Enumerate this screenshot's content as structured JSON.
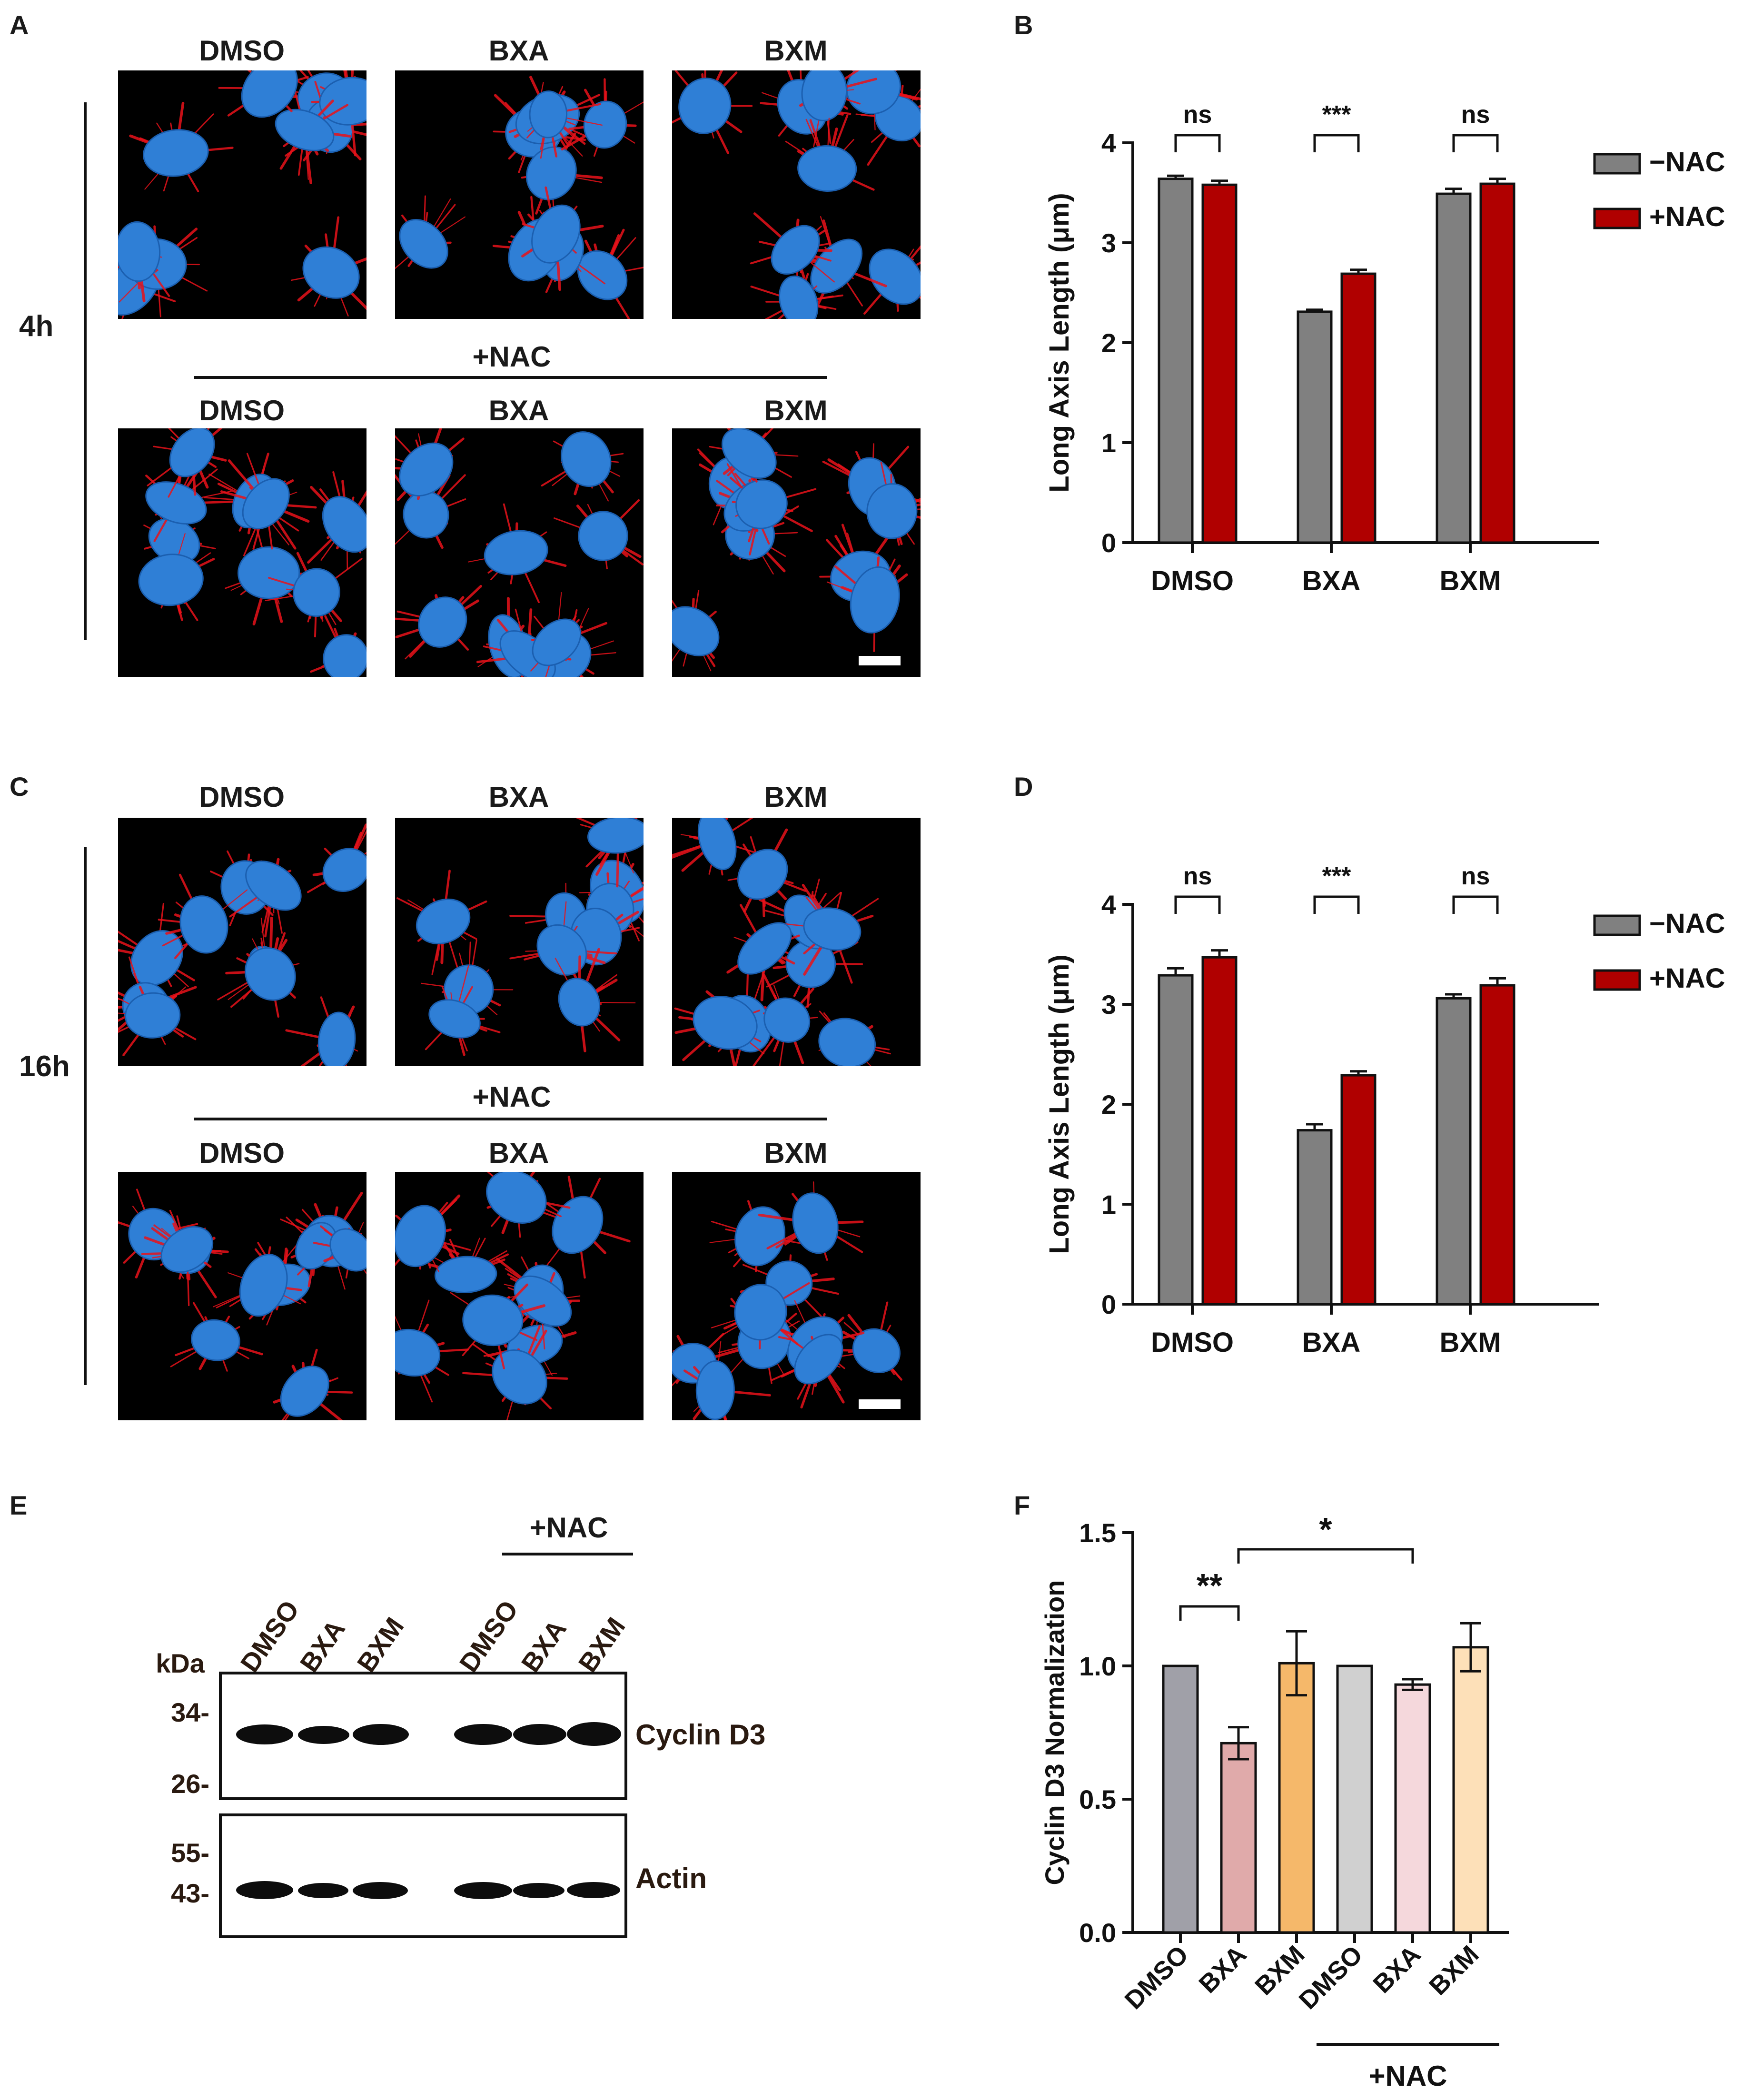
{
  "panels": {
    "A": {
      "letter": "A",
      "time_label": "4h",
      "top_labels": [
        "DMSO",
        "BXA",
        "BXM"
      ],
      "nac_label": "+NAC",
      "bottom_labels": [
        "DMSO",
        "BXA",
        "BXM"
      ]
    },
    "B": {
      "letter": "B",
      "chart_data": {
        "type": "bar",
        "categories": [
          "DMSO",
          "BXA",
          "BXM"
        ],
        "series": [
          {
            "name": "−NAC",
            "values": [
              3.64,
              2.31,
              3.49
            ],
            "errors": [
              0.03,
              0.02,
              0.05
            ],
            "color": "#808080"
          },
          {
            "name": "+NAC",
            "values": [
              3.58,
              2.69,
              3.59
            ],
            "errors": [
              0.04,
              0.04,
              0.05
            ],
            "color": "#b00000"
          }
        ],
        "ylabel": "Long Axis Length (μm)",
        "ylim": [
          0,
          4
        ],
        "yticks": [
          "0",
          "1",
          "2",
          "3",
          "4"
        ],
        "significance": [
          "ns",
          "***",
          "ns"
        ],
        "legend": "right"
      }
    },
    "C": {
      "letter": "C",
      "time_label": "16h",
      "top_labels": [
        "DMSO",
        "BXA",
        "BXM"
      ],
      "nac_label": "+NAC",
      "bottom_labels": [
        "DMSO",
        "BXA",
        "BXM"
      ]
    },
    "D": {
      "letter": "D",
      "chart_data": {
        "type": "bar",
        "categories": [
          "DMSO",
          "BXA",
          "BXM"
        ],
        "series": [
          {
            "name": "−NAC",
            "values": [
              3.29,
              1.74,
              3.06
            ],
            "errors": [
              0.07,
              0.06,
              0.04
            ],
            "color": "#808080"
          },
          {
            "name": "+NAC",
            "values": [
              3.47,
              2.29,
              3.19
            ],
            "errors": [
              0.07,
              0.04,
              0.07
            ],
            "color": "#b00000"
          }
        ],
        "ylabel": "Long Axis Length (μm)",
        "ylim": [
          0,
          4
        ],
        "yticks": [
          "0",
          "1",
          "2",
          "3",
          "4"
        ],
        "significance": [
          "ns",
          "***",
          "ns"
        ],
        "legend": "right"
      }
    },
    "E": {
      "letter": "E",
      "nac_label": "+NAC",
      "kda_label": "kDa",
      "lanes": [
        "DMSO",
        "BXA",
        "BXM",
        "DMSO",
        "BXA",
        "BXM"
      ],
      "top_blot": {
        "markers": [
          "34-",
          "26-"
        ],
        "protein": "Cyclin D3"
      },
      "bottom_blot": {
        "markers": [
          "55-",
          "43-"
        ],
        "protein": "Actin"
      }
    },
    "F": {
      "letter": "F",
      "chart_data": {
        "type": "bar",
        "categories": [
          "DMSO",
          "BXA",
          "BXM",
          "DMSO",
          "BXA",
          "BXM"
        ],
        "values": [
          1.0,
          0.71,
          1.01,
          1.0,
          0.93,
          1.07
        ],
        "errors": [
          0.0,
          0.06,
          0.12,
          0.0,
          0.02,
          0.09
        ],
        "colors": [
          "#a0a0a8",
          "#e0aaaa",
          "#f5b86a",
          "#d0d0d0",
          "#f5d8dc",
          "#fde0b8"
        ],
        "ylabel": "Cyclin D3 Normalization",
        "ylim": [
          0,
          1.5
        ],
        "yticks": [
          "0.0",
          "0.5",
          "1.0",
          "1.5"
        ],
        "significance": [
          {
            "from": 0,
            "to": 1,
            "label": "**"
          },
          {
            "from": 1,
            "to": 4,
            "label": "*"
          }
        ],
        "group_label": "+NAC"
      }
    }
  }
}
